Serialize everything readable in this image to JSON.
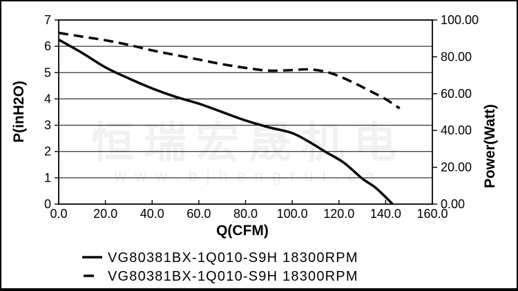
{
  "watermark": {
    "line1": "恒瑞宏晟机电",
    "line2": "www.bjhengrui.cn"
  },
  "colors": {
    "curve": "#0a0a0a",
    "axis": "#000000",
    "watermark_cn": "#f1f1f1",
    "watermark_url": "#f3eaea",
    "background": "#ffffff"
  },
  "chart_data": {
    "type": "line",
    "title": "",
    "xlabel": "Q(CFM)",
    "ylabel_left": "P(inH2O)",
    "ylabel_right": "Power(Watt)",
    "xlim": [
      0,
      160
    ],
    "ylim_left": [
      0,
      7
    ],
    "ylim_right": [
      0,
      100
    ],
    "x_tick_values": [
      0,
      20,
      40,
      60,
      80,
      100,
      120,
      140,
      160
    ],
    "x_ticks": [
      "0.0",
      "20.0",
      "40.0",
      "60.0",
      "80.0",
      "100.0",
      "120.0",
      "140.0",
      "160.0"
    ],
    "y_tick_values_left": [
      0,
      1,
      2,
      3,
      4,
      5,
      6,
      7
    ],
    "y_ticks_left": [
      "0",
      "1",
      "2",
      "3",
      "4",
      "5",
      "6",
      "7"
    ],
    "y_tick_values_right": [
      0,
      20,
      40,
      60,
      80,
      100
    ],
    "y_ticks_right": [
      "0.00",
      "20.00",
      "40.00",
      "60.00",
      "80.00",
      "100.00"
    ],
    "grid": "horizontal",
    "legend_position": "bottom",
    "series": [
      {
        "name": "VG80381BX-1Q010-S9H 18300RPM",
        "style": "solid",
        "axis": "left",
        "x": [
          0,
          10,
          20,
          30,
          40,
          50,
          60,
          70,
          80,
          90,
          100,
          107,
          114,
          122,
          130,
          136,
          143
        ],
        "y": [
          6.25,
          5.75,
          5.2,
          4.78,
          4.4,
          4.08,
          3.82,
          3.5,
          3.18,
          2.92,
          2.7,
          2.38,
          2.0,
          1.58,
          0.97,
          0.6,
          0.0
        ]
      },
      {
        "name": "VG80381BX-1Q010-S9H 18300RPM",
        "style": "dashed",
        "axis": "right",
        "x": [
          0,
          10,
          20,
          30,
          40,
          50,
          60,
          70,
          80,
          90,
          100,
          107,
          114,
          120,
          127,
          134,
          140,
          146
        ],
        "y": [
          93,
          91,
          89,
          86.5,
          83.5,
          81,
          78.5,
          76,
          74,
          72.5,
          72.8,
          73.2,
          72,
          69.5,
          65.5,
          61,
          57,
          52
        ]
      }
    ]
  }
}
